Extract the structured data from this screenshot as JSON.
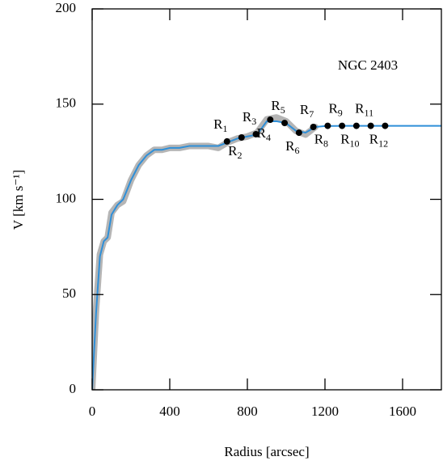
{
  "chart_data": {
    "type": "line",
    "annotation": "NGC 2403",
    "xlabel": "Radius [arcsec]",
    "ylabel": "V [km s⁻¹]",
    "xlim": [
      0,
      1800
    ],
    "ylim": [
      0,
      200
    ],
    "xticks": [
      0,
      400,
      800,
      1200,
      1600
    ],
    "yticks": [
      0,
      50,
      100,
      150,
      200
    ],
    "x": [
      0,
      20,
      40,
      60,
      80,
      100,
      130,
      160,
      200,
      240,
      280,
      320,
      360,
      400,
      450,
      500,
      550,
      600,
      650,
      700,
      750,
      800,
      850,
      900,
      950,
      1000,
      1050,
      1100,
      1150,
      1200,
      1300,
      1400,
      1500,
      1600,
      1700,
      1800
    ],
    "series": [
      {
        "color": "#b5b5b5",
        "width": 8,
        "values": [
          0,
          42,
          71,
          78,
          80,
          93,
          97,
          99,
          110,
          118,
          123,
          126,
          126,
          127,
          127,
          128,
          128,
          128,
          127,
          130,
          132,
          133,
          135,
          142,
          143,
          141,
          136,
          134,
          138,
          null,
          null,
          null,
          null,
          null,
          null,
          null
        ]
      },
      {
        "color": "#2e8fd8",
        "width": 2,
        "values": [
          0,
          40,
          70,
          78,
          80,
          92,
          97,
          100,
          110,
          118,
          123,
          126,
          126,
          127,
          127,
          128,
          128,
          128,
          128,
          130,
          132,
          133,
          134,
          141,
          141,
          140,
          136,
          135,
          138,
          138.5,
          138.6,
          138.6,
          138.6,
          138.6,
          138.6,
          138.6
        ]
      }
    ],
    "points": {
      "color": "#000000",
      "x": [
        695,
        770,
        844,
        918,
        992,
        1066,
        1140,
        1214,
        1288,
        1362,
        1436,
        1510
      ],
      "values": [
        130.4,
        132.5,
        134.2,
        141.8,
        140.1,
        135,
        138,
        138.6,
        138.6,
        138.6,
        138.6,
        138.6
      ],
      "labels": [
        "R1",
        "R2",
        "R3",
        "R4",
        "R5",
        "R6",
        "R7",
        "R8",
        "R9",
        "R10",
        "R11",
        "R12"
      ]
    }
  }
}
